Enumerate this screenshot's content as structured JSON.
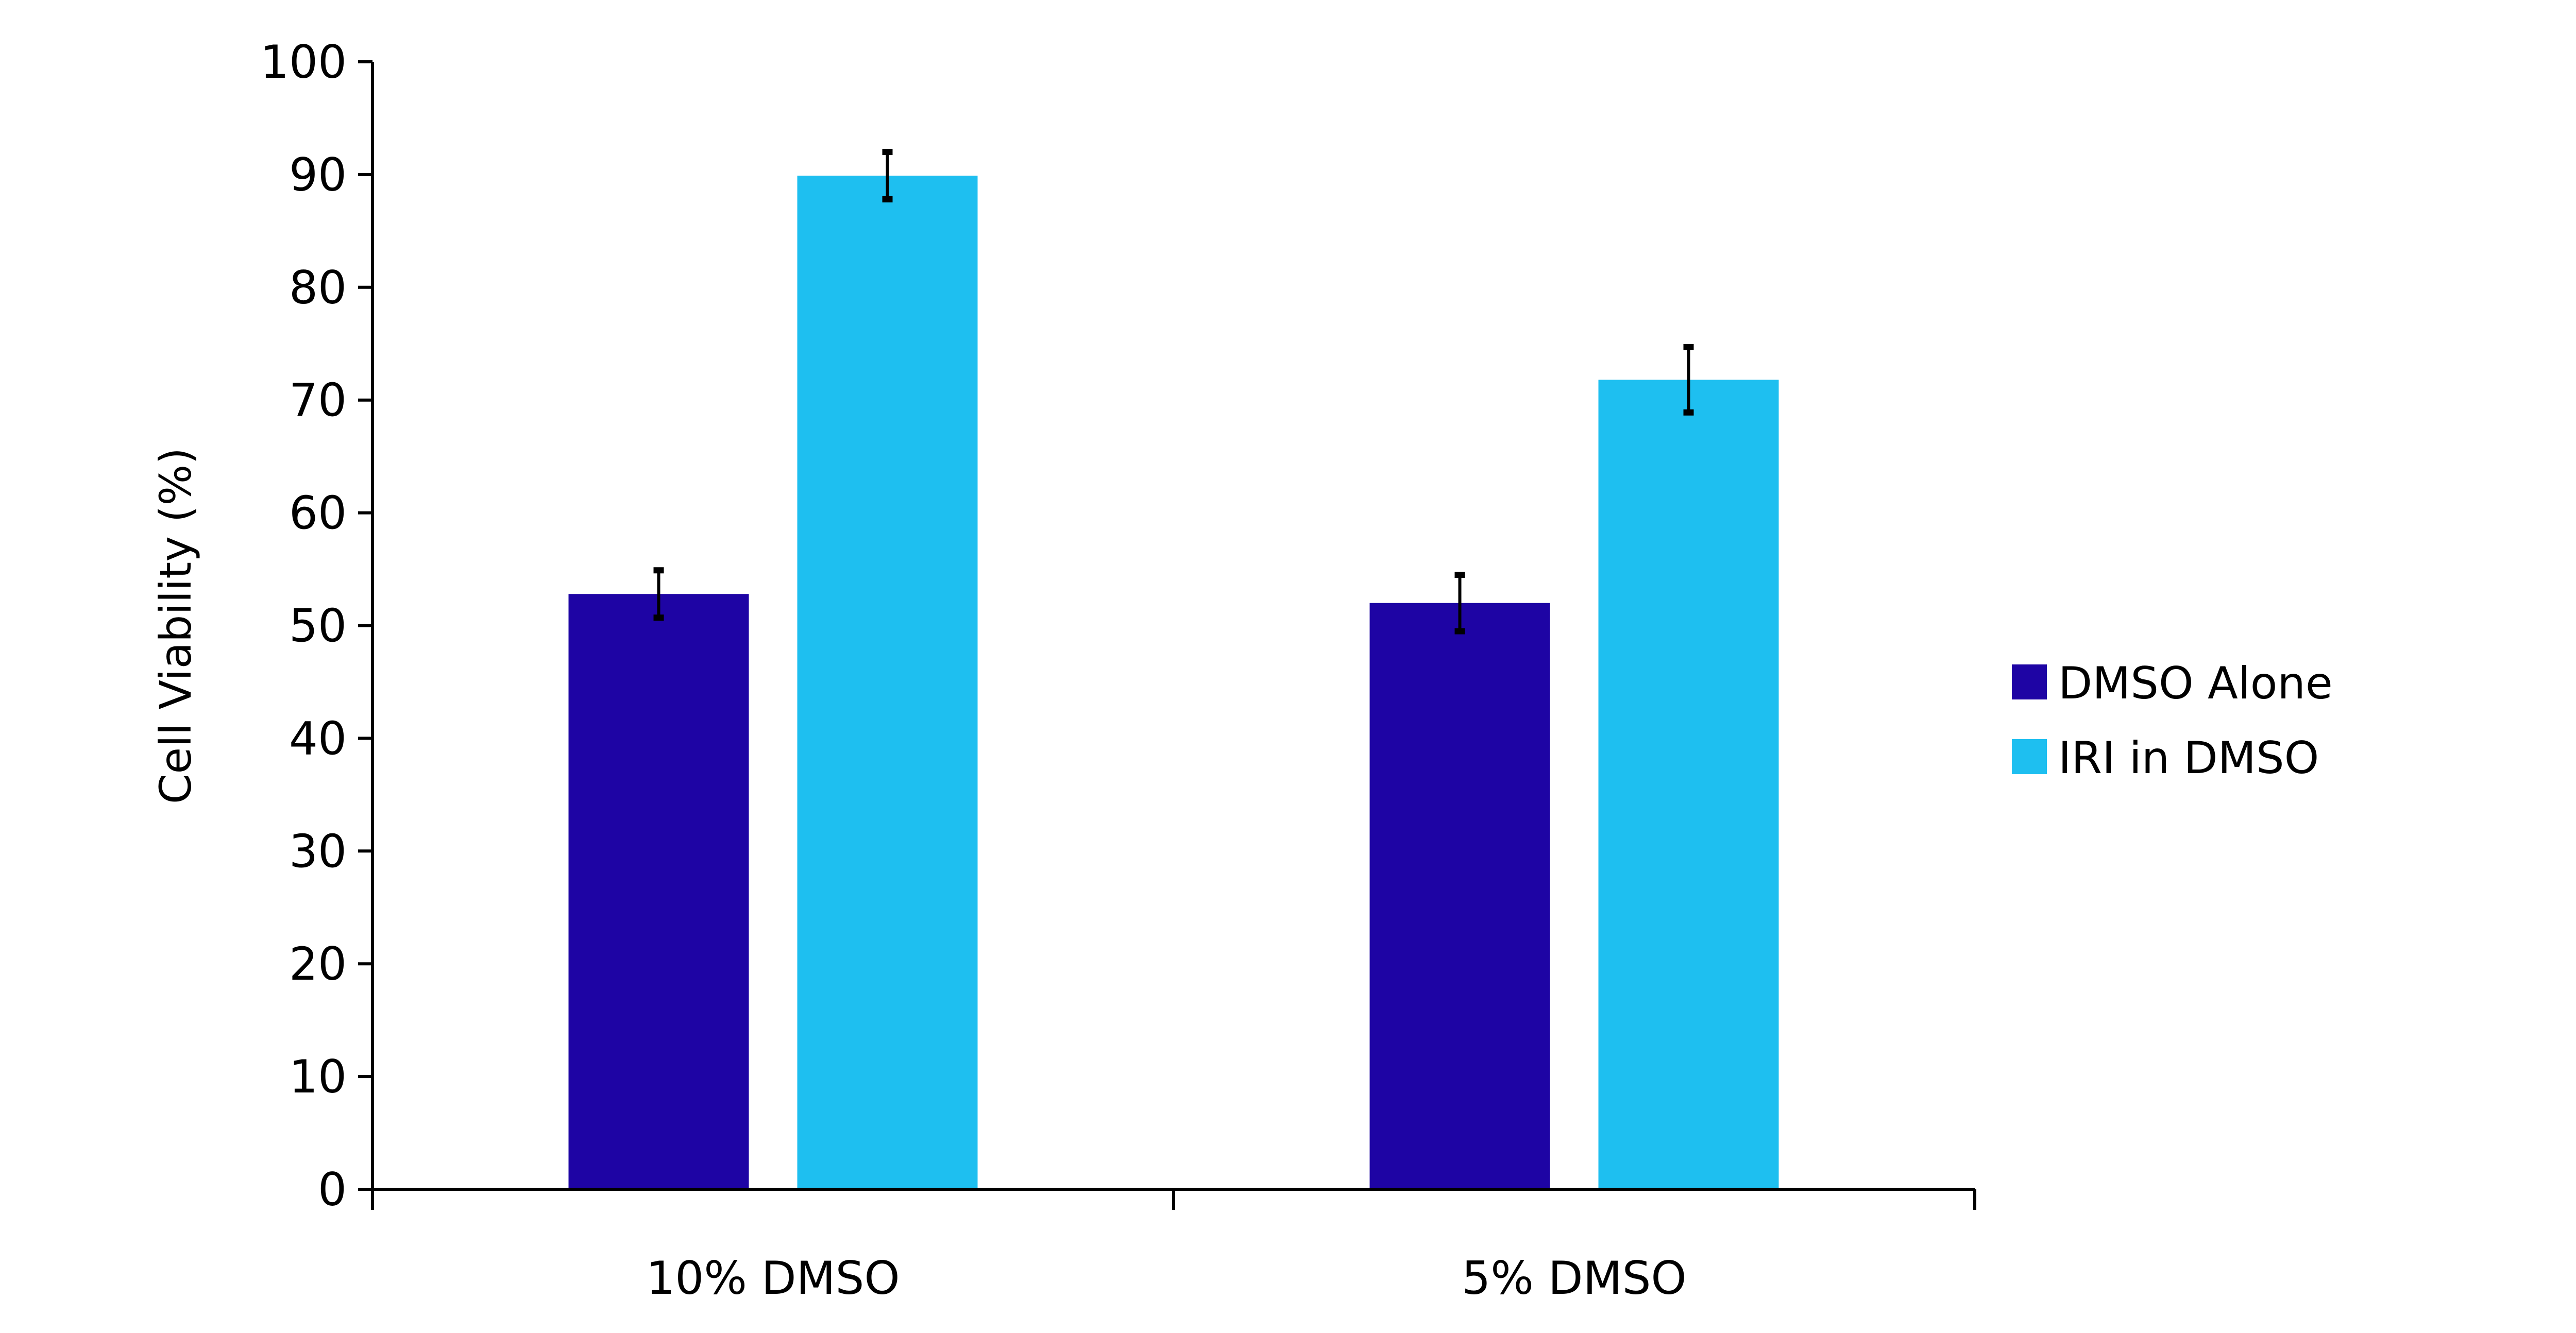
{
  "chart_data": {
    "type": "bar",
    "title": "",
    "xlabel": "",
    "ylabel": "Cell Viability (%)",
    "ylim": [
      0,
      100
    ],
    "yticks": [
      0,
      10,
      20,
      30,
      40,
      50,
      60,
      70,
      80,
      90,
      100
    ],
    "categories": [
      "10% DMSO",
      "5% DMSO"
    ],
    "grid": false,
    "legend_position": "right",
    "series": [
      {
        "name": "DMSO Alone",
        "color": "#1e04a4",
        "values": [
          52.8,
          52.0
        ],
        "errors": [
          2.1,
          2.5
        ]
      },
      {
        "name": "IRI in DMSO",
        "color": "#1ebff0",
        "values": [
          89.9,
          71.8
        ],
        "errors": [
          2.1,
          2.9
        ]
      }
    ]
  }
}
